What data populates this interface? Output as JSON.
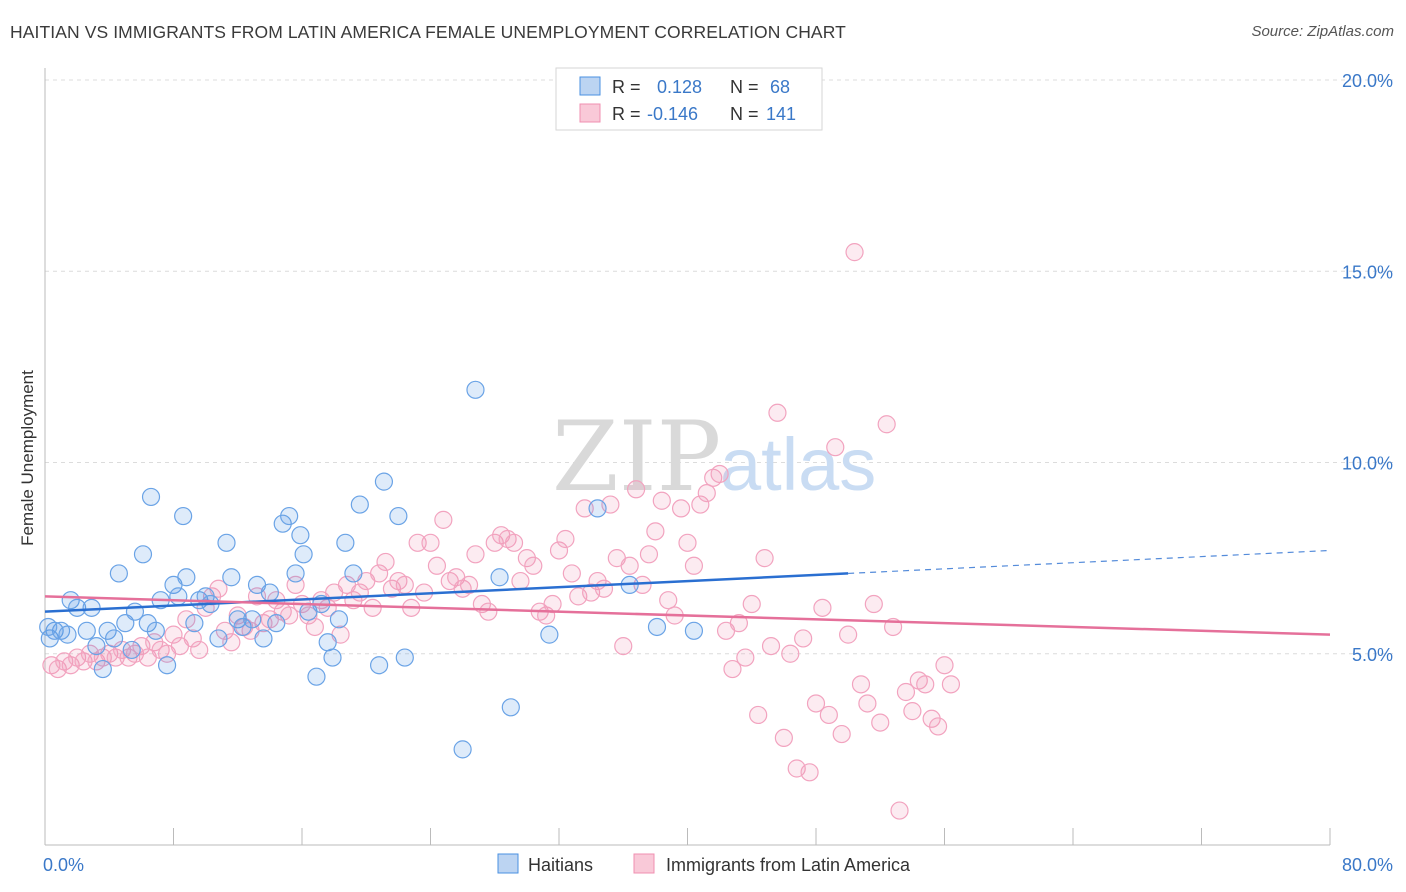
{
  "header": {
    "title": "HAITIAN VS IMMIGRANTS FROM LATIN AMERICA FEMALE UNEMPLOYMENT CORRELATION CHART",
    "source": "Source: ZipAtlas.com"
  },
  "watermark": {
    "zip": "ZIP",
    "atlas": "atlas"
  },
  "chart_data": {
    "type": "scatter",
    "title": "HAITIAN VS IMMIGRANTS FROM LATIN AMERICA FEMALE UNEMPLOYMENT CORRELATION CHART",
    "xlabel": "",
    "ylabel": "Female Unemployment",
    "xlim": [
      0,
      80
    ],
    "ylim": [
      0,
      20
    ],
    "x_tick_labels": [
      "0.0%",
      "80.0%"
    ],
    "y_ticks": [
      5,
      10,
      15,
      20
    ],
    "y_tick_labels": [
      "5.0%",
      "10.0%",
      "15.0%",
      "20.0%"
    ],
    "grid": true,
    "legend_position": "top-center",
    "colors": {
      "haitians": "#4a90e2",
      "latin": "#f08fb0",
      "haitians_line": "#2a6fd1",
      "latin_line": "#e5709a",
      "tick_label": "#3a78c8"
    },
    "stats": [
      {
        "r_label": "R =",
        "r": "0.128",
        "n_label": "N =",
        "n": "68"
      },
      {
        "r_label": "R =",
        "r": "-0.146",
        "n_label": "N =",
        "n": "141"
      }
    ],
    "series": [
      {
        "name": "Haitians",
        "color": "#4a90e2",
        "trend": {
          "x": [
            0,
            50
          ],
          "y": [
            6.1,
            7.1
          ],
          "dashed_to": [
            80,
            7.7
          ]
        },
        "points": [
          [
            0.3,
            5.4
          ],
          [
            0.6,
            5.6
          ],
          [
            1,
            5.6
          ],
          [
            1.4,
            5.5
          ],
          [
            1.6,
            6.4
          ],
          [
            2,
            6.2
          ],
          [
            2.6,
            5.6
          ],
          [
            2.9,
            6.2
          ],
          [
            3.2,
            5.2
          ],
          [
            3.6,
            4.6
          ],
          [
            3.9,
            5.6
          ],
          [
            4.3,
            5.4
          ],
          [
            4.6,
            7.1
          ],
          [
            5,
            5.8
          ],
          [
            5.4,
            5.1
          ],
          [
            5.6,
            6.1
          ],
          [
            6.1,
            7.6
          ],
          [
            6.4,
            5.8
          ],
          [
            6.6,
            9.1
          ],
          [
            6.9,
            5.6
          ],
          [
            7.2,
            6.4
          ],
          [
            7.6,
            4.7
          ],
          [
            8,
            6.8
          ],
          [
            8.3,
            6.5
          ],
          [
            8.6,
            8.6
          ],
          [
            8.8,
            7.0
          ],
          [
            9.3,
            5.8
          ],
          [
            9.6,
            6.4
          ],
          [
            10,
            6.5
          ],
          [
            10.3,
            6.3
          ],
          [
            10.8,
            5.4
          ],
          [
            11.3,
            7.9
          ],
          [
            11.6,
            7.0
          ],
          [
            12,
            5.9
          ],
          [
            12.3,
            5.7
          ],
          [
            12.9,
            5.9
          ],
          [
            13.2,
            6.8
          ],
          [
            13.6,
            5.4
          ],
          [
            14,
            6.6
          ],
          [
            14.4,
            5.8
          ],
          [
            14.8,
            8.4
          ],
          [
            15.2,
            8.6
          ],
          [
            15.6,
            7.1
          ],
          [
            15.9,
            8.1
          ],
          [
            16.1,
            7.6
          ],
          [
            16.4,
            6.1
          ],
          [
            16.9,
            4.4
          ],
          [
            17.2,
            6.3
          ],
          [
            17.6,
            5.3
          ],
          [
            17.9,
            4.9
          ],
          [
            18.3,
            5.9
          ],
          [
            18.7,
            7.9
          ],
          [
            19.2,
            7.1
          ],
          [
            19.6,
            8.9
          ],
          [
            20.8,
            4.7
          ],
          [
            21.1,
            9.5
          ],
          [
            22,
            8.6
          ],
          [
            22.4,
            4.9
          ],
          [
            26,
            2.5
          ],
          [
            26.8,
            11.9
          ],
          [
            28.3,
            7.0
          ],
          [
            29,
            3.6
          ],
          [
            31.4,
            5.5
          ],
          [
            34.4,
            8.8
          ],
          [
            36.4,
            6.8
          ],
          [
            38.1,
            5.7
          ],
          [
            40.4,
            5.6
          ],
          [
            0.2,
            5.7
          ]
        ]
      },
      {
        "name": "Immigrants from Latin America",
        "color": "#f08fb0",
        "trend": {
          "x": [
            0,
            80
          ],
          "y": [
            6.5,
            5.5
          ]
        },
        "points": [
          [
            0.4,
            4.7
          ],
          [
            0.8,
            4.6
          ],
          [
            1.2,
            4.8
          ],
          [
            1.6,
            4.7
          ],
          [
            2,
            4.9
          ],
          [
            2.4,
            4.8
          ],
          [
            2.8,
            5.0
          ],
          [
            3.2,
            4.8
          ],
          [
            3.6,
            4.9
          ],
          [
            4,
            5.0
          ],
          [
            4.4,
            4.9
          ],
          [
            4.8,
            5.1
          ],
          [
            5.2,
            4.9
          ],
          [
            5.6,
            5.0
          ],
          [
            6,
            5.2
          ],
          [
            6.4,
            4.9
          ],
          [
            6.8,
            5.3
          ],
          [
            7.2,
            5.1
          ],
          [
            7.6,
            5.0
          ],
          [
            8,
            5.5
          ],
          [
            8.4,
            5.2
          ],
          [
            8.8,
            5.9
          ],
          [
            9.2,
            5.4
          ],
          [
            9.6,
            5.1
          ],
          [
            10,
            6.2
          ],
          [
            10.4,
            6.5
          ],
          [
            10.8,
            6.7
          ],
          [
            11.2,
            5.6
          ],
          [
            11.6,
            5.3
          ],
          [
            12,
            6.0
          ],
          [
            12.4,
            5.7
          ],
          [
            12.8,
            5.6
          ],
          [
            13.2,
            6.5
          ],
          [
            13.6,
            5.8
          ],
          [
            14,
            5.9
          ],
          [
            14.4,
            6.4
          ],
          [
            14.8,
            6.1
          ],
          [
            15.2,
            6.0
          ],
          [
            15.6,
            6.8
          ],
          [
            16,
            6.3
          ],
          [
            16.4,
            6.0
          ],
          [
            16.8,
            5.7
          ],
          [
            17.2,
            6.4
          ],
          [
            17.6,
            6.2
          ],
          [
            18,
            6.6
          ],
          [
            18.4,
            5.5
          ],
          [
            18.8,
            6.8
          ],
          [
            19.2,
            6.4
          ],
          [
            19.6,
            6.6
          ],
          [
            20,
            6.9
          ],
          [
            20.4,
            6.2
          ],
          [
            20.8,
            7.1
          ],
          [
            21.2,
            7.4
          ],
          [
            21.6,
            6.7
          ],
          [
            22,
            6.9
          ],
          [
            22.4,
            6.8
          ],
          [
            22.8,
            6.2
          ],
          [
            23.2,
            7.9
          ],
          [
            23.6,
            6.6
          ],
          [
            24,
            7.9
          ],
          [
            24.4,
            7.3
          ],
          [
            24.8,
            8.5
          ],
          [
            25.2,
            6.9
          ],
          [
            25.6,
            7.0
          ],
          [
            26,
            6.7
          ],
          [
            26.4,
            6.8
          ],
          [
            26.8,
            7.6
          ],
          [
            27.2,
            6.3
          ],
          [
            27.6,
            6.1
          ],
          [
            28,
            7.9
          ],
          [
            28.4,
            8.1
          ],
          [
            28.8,
            8.0
          ],
          [
            29.2,
            7.9
          ],
          [
            29.6,
            6.9
          ],
          [
            30,
            7.5
          ],
          [
            30.4,
            7.3
          ],
          [
            30.8,
            6.1
          ],
          [
            31.2,
            6.0
          ],
          [
            31.6,
            6.3
          ],
          [
            32,
            7.7
          ],
          [
            32.4,
            8.0
          ],
          [
            32.8,
            7.1
          ],
          [
            33.2,
            6.5
          ],
          [
            33.6,
            8.8
          ],
          [
            34,
            6.6
          ],
          [
            34.4,
            6.9
          ],
          [
            34.8,
            6.7
          ],
          [
            35.2,
            8.9
          ],
          [
            35.6,
            7.5
          ],
          [
            36,
            5.2
          ],
          [
            36.4,
            7.3
          ],
          [
            36.8,
            9.3
          ],
          [
            37.2,
            6.8
          ],
          [
            37.6,
            7.6
          ],
          [
            38,
            8.2
          ],
          [
            38.4,
            9.0
          ],
          [
            38.8,
            6.4
          ],
          [
            39.2,
            6.0
          ],
          [
            39.6,
            8.8
          ],
          [
            40,
            7.9
          ],
          [
            40.4,
            7.3
          ],
          [
            40.8,
            8.9
          ],
          [
            41.2,
            9.2
          ],
          [
            41.6,
            9.6
          ],
          [
            42,
            9.7
          ],
          [
            42.4,
            5.6
          ],
          [
            42.8,
            4.6
          ],
          [
            43.2,
            5.8
          ],
          [
            43.6,
            4.9
          ],
          [
            44,
            6.3
          ],
          [
            44.4,
            3.4
          ],
          [
            44.8,
            7.5
          ],
          [
            45.2,
            5.2
          ],
          [
            45.6,
            11.3
          ],
          [
            46,
            2.8
          ],
          [
            46.4,
            5.0
          ],
          [
            46.8,
            2.0
          ],
          [
            47.2,
            5.4
          ],
          [
            47.6,
            1.9
          ],
          [
            48,
            3.7
          ],
          [
            48.4,
            6.2
          ],
          [
            48.8,
            3.4
          ],
          [
            49.2,
            10.4
          ],
          [
            49.6,
            2.9
          ],
          [
            50,
            5.5
          ],
          [
            50.4,
            15.5
          ],
          [
            50.8,
            4.2
          ],
          [
            51.2,
            3.7
          ],
          [
            51.6,
            6.3
          ],
          [
            52,
            3.2
          ],
          [
            52.4,
            11.0
          ],
          [
            52.8,
            5.7
          ],
          [
            53.2,
            0.9
          ],
          [
            53.6,
            4.0
          ],
          [
            54,
            3.5
          ],
          [
            54.4,
            4.3
          ],
          [
            54.8,
            4.2
          ],
          [
            55.2,
            3.3
          ],
          [
            55.6,
            3.1
          ],
          [
            56,
            4.7
          ],
          [
            56.4,
            4.2
          ]
        ]
      }
    ]
  },
  "legend": {
    "items": [
      "Haitians",
      "Immigrants from Latin America"
    ]
  }
}
